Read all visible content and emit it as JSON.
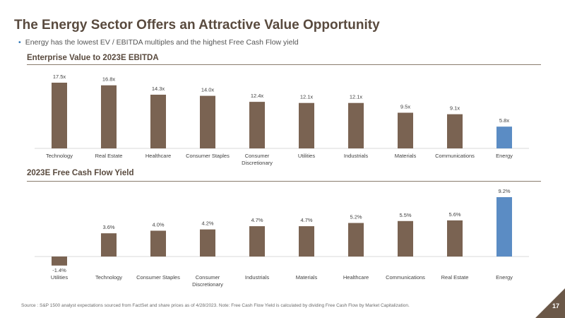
{
  "header": {
    "title": "The Energy Sector Offers an Attractive Value Opportunity",
    "bullet": "Energy has the lowest EV / EBITDA multiples and the highest Free Cash Flow yield"
  },
  "colors": {
    "bar": "#7a6352",
    "highlight": "#5b8cc4",
    "title": "#594a3e"
  },
  "chart_data": [
    {
      "type": "bar",
      "title": "Enterprise Value to 2023E EBITDA",
      "categories": [
        "Technology",
        "Real Estate",
        "Healthcare",
        "Consumer Staples",
        "Consumer Discretionary",
        "Utilities",
        "Industrials",
        "Materials",
        "Communications",
        "Energy"
      ],
      "values": [
        17.5,
        16.8,
        14.3,
        14.0,
        12.4,
        12.1,
        12.1,
        9.5,
        9.1,
        5.8
      ],
      "value_labels": [
        "17.5x",
        "16.8x",
        "14.3x",
        "14.0x",
        "12.4x",
        "12.1x",
        "12.1x",
        "9.5x",
        "9.1x",
        "5.8x"
      ],
      "highlight": "Energy",
      "ylim": [
        0,
        17.5
      ],
      "grid": false
    },
    {
      "type": "bar",
      "title": "2023E Free Cash Flow Yield",
      "categories": [
        "Utilities",
        "Technology",
        "Consumer Staples",
        "Consumer Discretionary",
        "Industrials",
        "Materials",
        "Healthcare",
        "Communications",
        "Real Estate",
        "Energy"
      ],
      "values": [
        -1.4,
        3.6,
        4.0,
        4.2,
        4.7,
        4.7,
        5.2,
        5.5,
        5.6,
        9.2
      ],
      "value_labels": [
        "-1.4%",
        "3.6%",
        "4.0%",
        "4.2%",
        "4.7%",
        "4.7%",
        "5.2%",
        "5.5%",
        "5.6%",
        "9.2%"
      ],
      "highlight": "Energy",
      "ylim": [
        -1.4,
        9.2
      ],
      "grid": false
    }
  ],
  "footer": {
    "source": "Source : S&P 1500 analyst expectations sourced from FactSet and share prices as of 4/28/2023. Note: Free Cash Flow Yield is calculated by dividing Free Cash Flow by Market Capitalization.",
    "page_number": "17"
  }
}
